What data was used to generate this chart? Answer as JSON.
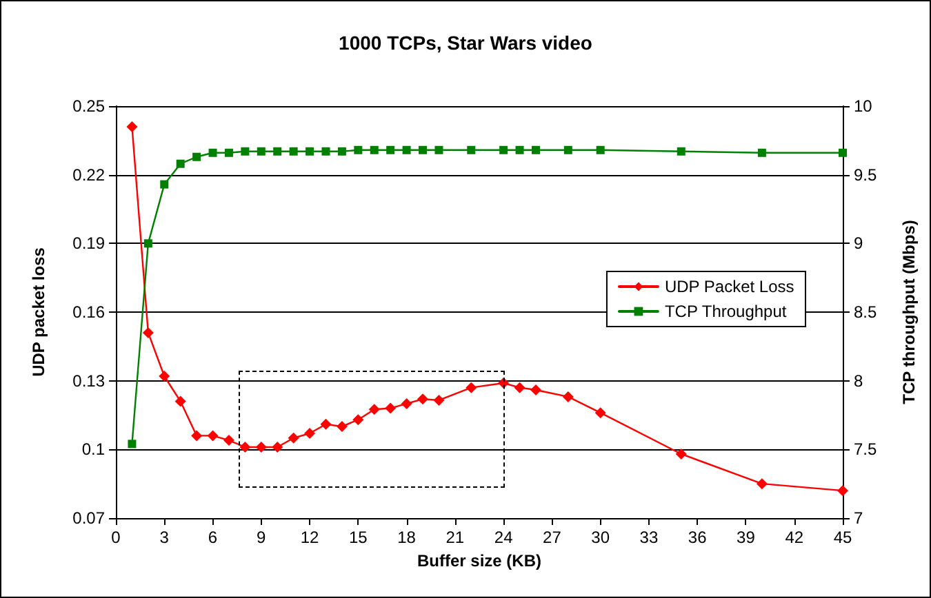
{
  "chart_data": {
    "type": "line",
    "title": "1000 TCPs, Star Wars video",
    "xlabel": "Buffer size (KB)",
    "ylabel": "UDP packet loss",
    "y2label": "TCP throughput (Mbps)",
    "series": [
      {
        "name": "UDP Packet Loss",
        "color": "#ff0000",
        "marker": "diamond",
        "x": [
          1,
          2,
          3,
          4,
          5,
          6,
          7,
          8,
          9,
          10,
          11,
          12,
          13,
          14,
          15,
          16,
          17,
          18,
          19,
          20,
          22,
          24,
          25,
          26,
          28,
          30,
          35,
          40,
          45
        ],
        "values": [
          0.241,
          0.151,
          0.132,
          0.121,
          0.106,
          0.106,
          0.104,
          0.101,
          0.101,
          0.101,
          0.105,
          0.107,
          0.111,
          0.11,
          0.113,
          0.1175,
          0.118,
          0.12,
          0.122,
          0.1215,
          0.127,
          0.129,
          0.127,
          0.126,
          0.123,
          0.116,
          0.098,
          0.085,
          0.082
        ]
      },
      {
        "name": "TCP Throughput",
        "color": "#008000",
        "marker": "square",
        "axis": "y2",
        "x": [
          1,
          2,
          3,
          4,
          5,
          6,
          7,
          8,
          9,
          10,
          11,
          12,
          13,
          14,
          15,
          16,
          17,
          18,
          19,
          20,
          22,
          24,
          25,
          26,
          28,
          30,
          35,
          40,
          45
        ],
        "values": [
          7.54,
          9.0,
          9.43,
          9.58,
          9.63,
          9.66,
          9.66,
          9.67,
          9.67,
          9.67,
          9.67,
          9.67,
          9.67,
          9.67,
          9.68,
          9.68,
          9.68,
          9.68,
          9.68,
          9.68,
          9.68,
          9.68,
          9.68,
          9.68,
          9.68,
          9.68,
          9.67,
          9.66,
          9.66
        ]
      }
    ],
    "xlim": [
      0,
      45
    ],
    "xticks": [
      0,
      3,
      6,
      9,
      12,
      15,
      18,
      21,
      24,
      27,
      30,
      33,
      36,
      39,
      42,
      45
    ],
    "ylim": [
      0.07,
      0.25
    ],
    "yticks": [
      0.07,
      0.1,
      0.13,
      0.16,
      0.19,
      0.22,
      0.25
    ],
    "y2lim": [
      7,
      10
    ],
    "y2ticks": [
      7,
      7.5,
      8,
      8.5,
      9,
      9.5,
      10
    ],
    "grid": "y",
    "legend": "right",
    "line_style": "solid"
  }
}
